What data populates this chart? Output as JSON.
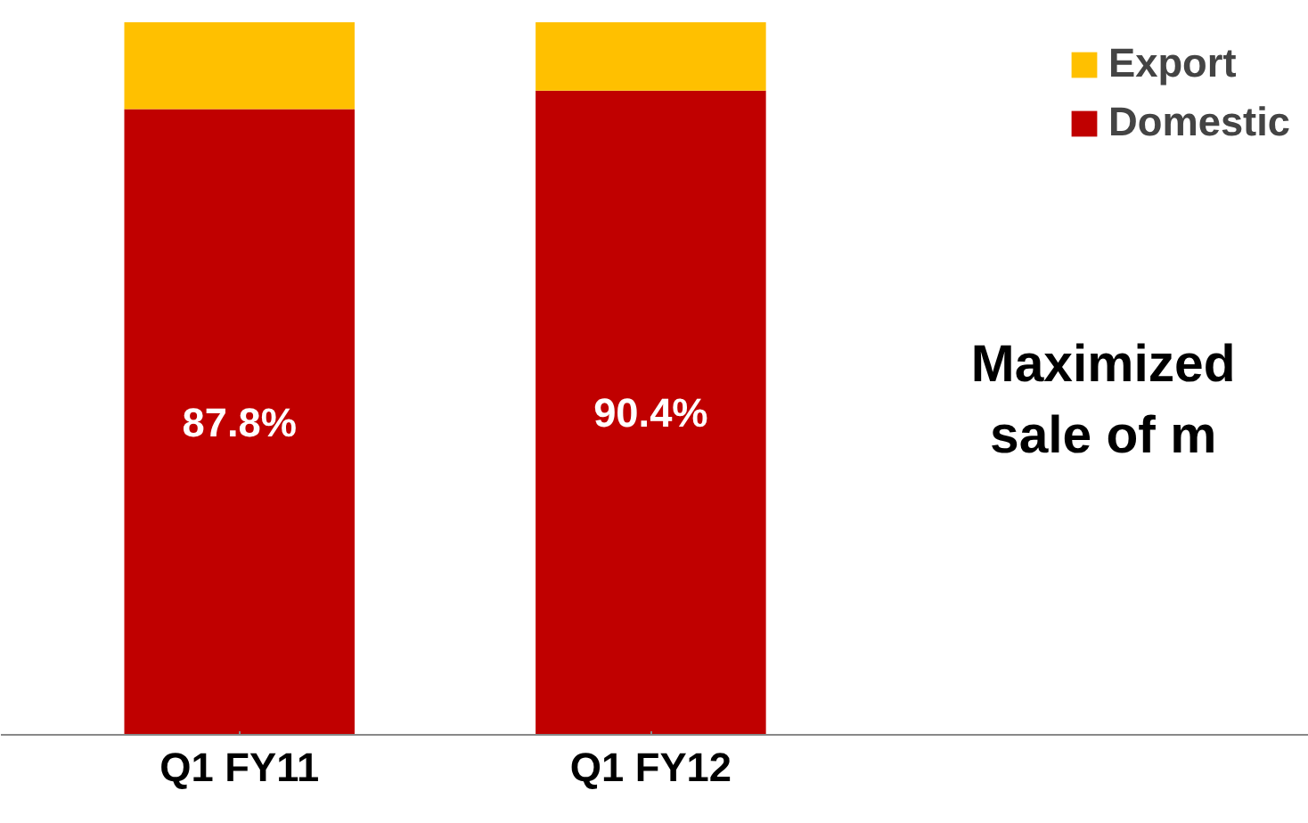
{
  "chart_data": {
    "type": "bar",
    "stacked": true,
    "categories": [
      "Q1 FY11",
      "Q1 FY12"
    ],
    "series": [
      {
        "name": "Domestic",
        "color": "#c00000",
        "values": [
          87.8,
          90.4
        ],
        "value_labels": [
          "87.8%",
          "90.4%"
        ]
      },
      {
        "name": "Export",
        "color": "#ffc000",
        "values": [
          12.2,
          9.6
        ]
      }
    ],
    "ylim": [
      0,
      100
    ],
    "tick_labels": "x",
    "legend": "top right",
    "grid": false,
    "annotations": [
      "Maximized",
      "sale of m"
    ]
  }
}
